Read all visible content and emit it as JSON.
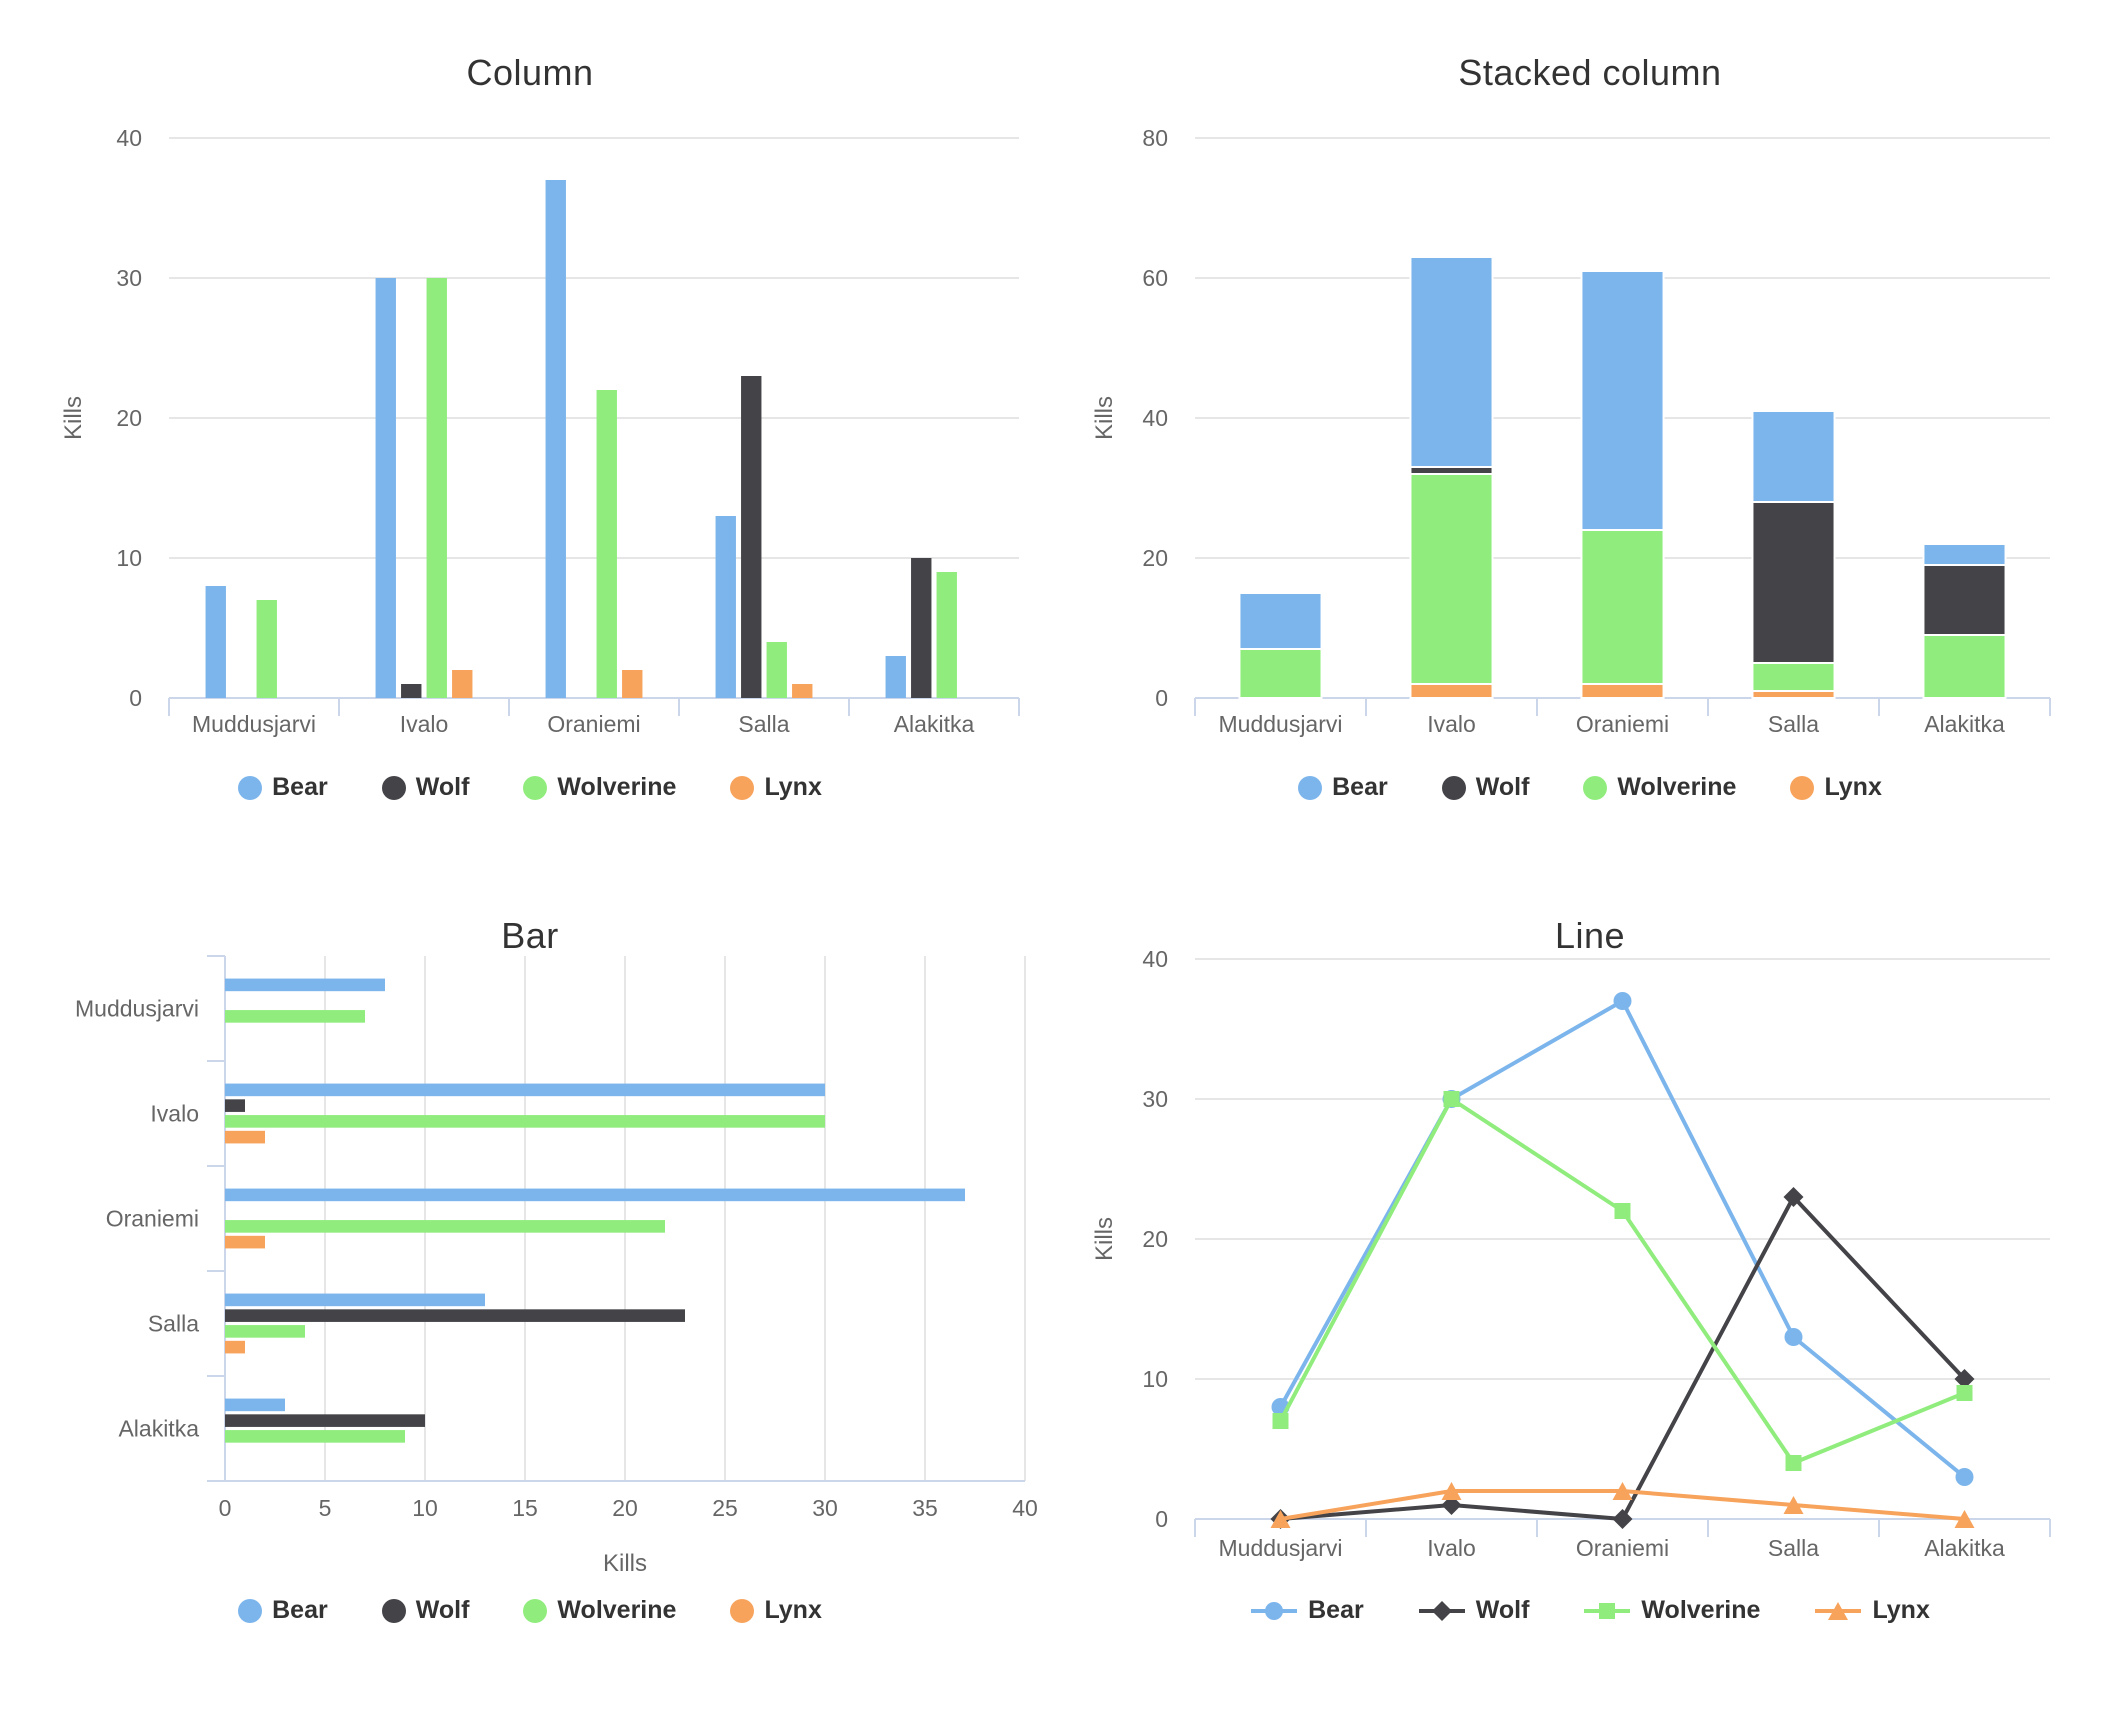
{
  "page": {
    "background": "#ffffff"
  },
  "style": {
    "grid_color": "#e6e6e6",
    "axis_line_color": "#ccd6eb",
    "tick_text_color": "#666666",
    "title_color": "#333333",
    "legend_text_color": "#333333"
  },
  "chart_data": [
    {
      "type": "bar",
      "orientation": "vertical",
      "stacked": false,
      "title": "Column",
      "categories": [
        "Muddusjarvi",
        "Ivalo",
        "Oraniemi",
        "Salla",
        "Alakitka"
      ],
      "series": [
        {
          "name": "Bear",
          "color": "#7cb5ec",
          "marker": "circle",
          "values": [
            8,
            30,
            37,
            13,
            3
          ]
        },
        {
          "name": "Wolf",
          "color": "#434348",
          "marker": "diamond",
          "values": [
            0,
            1,
            0,
            23,
            10
          ]
        },
        {
          "name": "Wolverine",
          "color": "#90ed7d",
          "marker": "square",
          "values": [
            7,
            30,
            22,
            4,
            9
          ]
        },
        {
          "name": "Lynx",
          "color": "#f7a35c",
          "marker": "triangle",
          "values": [
            0,
            2,
            2,
            1,
            0
          ]
        }
      ],
      "xlabel": "",
      "ylabel": "Kills",
      "ylim": [
        0,
        40
      ],
      "ytick": 10,
      "grid": "horizontal",
      "legend_position": "bottom"
    },
    {
      "type": "bar",
      "orientation": "vertical",
      "stacked": true,
      "title": "Stacked column",
      "categories": [
        "Muddusjarvi",
        "Ivalo",
        "Oraniemi",
        "Salla",
        "Alakitka"
      ],
      "series": [
        {
          "name": "Bear",
          "color": "#7cb5ec",
          "marker": "circle",
          "values": [
            8,
            30,
            37,
            13,
            3
          ]
        },
        {
          "name": "Wolf",
          "color": "#434348",
          "marker": "diamond",
          "values": [
            0,
            1,
            0,
            23,
            10
          ]
        },
        {
          "name": "Wolverine",
          "color": "#90ed7d",
          "marker": "square",
          "values": [
            7,
            30,
            22,
            4,
            9
          ]
        },
        {
          "name": "Lynx",
          "color": "#f7a35c",
          "marker": "triangle",
          "values": [
            0,
            2,
            2,
            1,
            0
          ]
        }
      ],
      "stack_order_bottom_to_top": [
        "Lynx",
        "Wolverine",
        "Wolf",
        "Bear"
      ],
      "stack_totals": [
        15,
        63,
        61,
        41,
        22
      ],
      "xlabel": "",
      "ylabel": "Kills",
      "ylim": [
        0,
        80
      ],
      "ytick": 20,
      "grid": "horizontal",
      "legend_position": "bottom"
    },
    {
      "type": "bar",
      "orientation": "horizontal",
      "stacked": false,
      "title": "Bar",
      "categories": [
        "Muddusjarvi",
        "Ivalo",
        "Oraniemi",
        "Salla",
        "Alakitka"
      ],
      "series": [
        {
          "name": "Bear",
          "color": "#7cb5ec",
          "marker": "circle",
          "values": [
            8,
            30,
            37,
            13,
            3
          ]
        },
        {
          "name": "Wolf",
          "color": "#434348",
          "marker": "diamond",
          "values": [
            0,
            1,
            0,
            23,
            10
          ]
        },
        {
          "name": "Wolverine",
          "color": "#90ed7d",
          "marker": "square",
          "values": [
            7,
            30,
            22,
            4,
            9
          ]
        },
        {
          "name": "Lynx",
          "color": "#f7a35c",
          "marker": "triangle",
          "values": [
            0,
            2,
            2,
            1,
            0
          ]
        }
      ],
      "xlabel": "Kills",
      "ylabel": "",
      "xlim": [
        0,
        40
      ],
      "xtick": 5,
      "grid": "vertical",
      "legend_position": "bottom"
    },
    {
      "type": "line",
      "orientation": "vertical",
      "stacked": false,
      "title": "Line",
      "categories": [
        "Muddusjarvi",
        "Ivalo",
        "Oraniemi",
        "Salla",
        "Alakitka"
      ],
      "series": [
        {
          "name": "Bear",
          "color": "#7cb5ec",
          "marker": "circle",
          "values": [
            8,
            30,
            37,
            13,
            3
          ]
        },
        {
          "name": "Wolf",
          "color": "#434348",
          "marker": "diamond",
          "values": [
            0,
            1,
            0,
            23,
            10
          ]
        },
        {
          "name": "Wolverine",
          "color": "#90ed7d",
          "marker": "square",
          "values": [
            7,
            30,
            22,
            4,
            9
          ]
        },
        {
          "name": "Lynx",
          "color": "#f7a35c",
          "marker": "triangle",
          "values": [
            0,
            2,
            2,
            1,
            0
          ]
        }
      ],
      "xlabel": "",
      "ylabel": "Kills",
      "ylim": [
        0,
        40
      ],
      "ytick": 10,
      "grid": "horizontal",
      "legend_position": "bottom"
    }
  ]
}
